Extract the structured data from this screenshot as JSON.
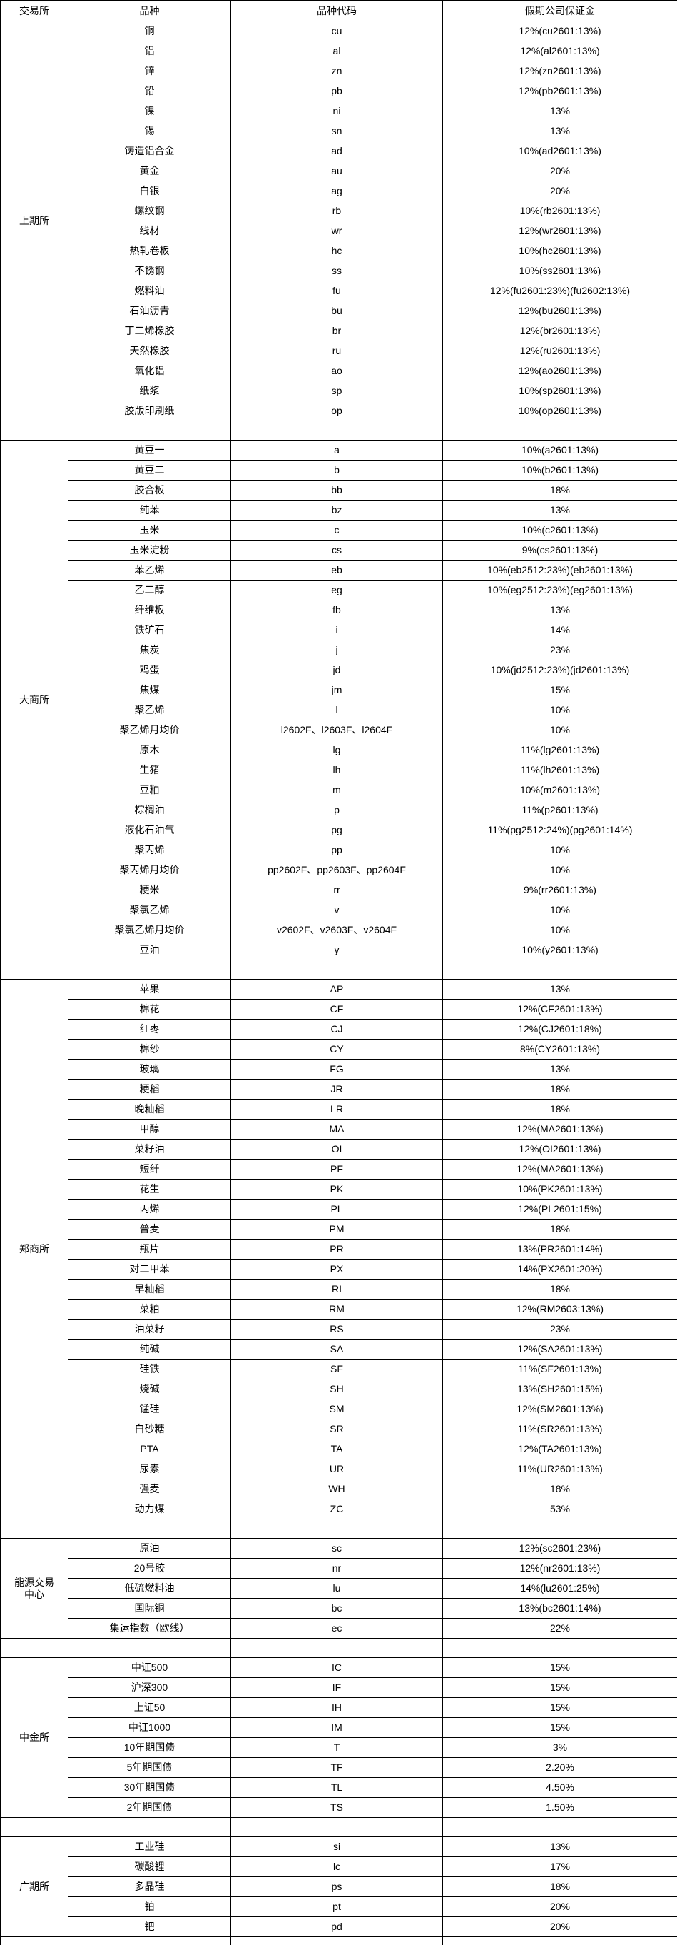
{
  "table": {
    "headers": [
      "交易所",
      "品种",
      "品种代码",
      "假期公司保证金"
    ],
    "sections": [
      {
        "exchange": "上期所",
        "rows": [
          [
            "铜",
            "cu",
            "12%(cu2601:13%)"
          ],
          [
            "铝",
            "al",
            "12%(al2601:13%)"
          ],
          [
            "锌",
            "zn",
            "12%(zn2601:13%)"
          ],
          [
            "铅",
            "pb",
            "12%(pb2601:13%)"
          ],
          [
            "镍",
            "ni",
            "13%"
          ],
          [
            "锡",
            "sn",
            "13%"
          ],
          [
            "铸造铝合金",
            "ad",
            "10%(ad2601:13%)"
          ],
          [
            "黄金",
            "au",
            "20%"
          ],
          [
            "白银",
            "ag",
            "20%"
          ],
          [
            "螺纹钢",
            "rb",
            "10%(rb2601:13%)"
          ],
          [
            "线材",
            "wr",
            "12%(wr2601:13%)"
          ],
          [
            "热轧卷板",
            "hc",
            "10%(hc2601:13%)"
          ],
          [
            "不锈钢",
            "ss",
            "10%(ss2601:13%)"
          ],
          [
            "燃料油",
            "fu",
            "12%(fu2601:23%)(fu2602:13%)"
          ],
          [
            "石油沥青",
            "bu",
            "12%(bu2601:13%)"
          ],
          [
            "丁二烯橡胶",
            "br",
            "12%(br2601:13%)"
          ],
          [
            "天然橡胶",
            "ru",
            "12%(ru2601:13%)"
          ],
          [
            "氧化铝",
            "ao",
            "12%(ao2601:13%)"
          ],
          [
            "纸浆",
            "sp",
            "10%(sp2601:13%)"
          ],
          [
            "胶版印刷纸",
            "op",
            "10%(op2601:13%)"
          ]
        ]
      },
      {
        "exchange": "大商所",
        "rows": [
          [
            "黄豆一",
            "a",
            "10%(a2601:13%)"
          ],
          [
            "黄豆二",
            "b",
            "10%(b2601:13%)"
          ],
          [
            "胶合板",
            "bb",
            "18%"
          ],
          [
            "纯苯",
            "bz",
            "13%"
          ],
          [
            "玉米",
            "c",
            "10%(c2601:13%)"
          ],
          [
            "玉米淀粉",
            "cs",
            "9%(cs2601:13%)"
          ],
          [
            "苯乙烯",
            "eb",
            "10%(eb2512:23%)(eb2601:13%)"
          ],
          [
            "乙二醇",
            "eg",
            "10%(eg2512:23%)(eg2601:13%)"
          ],
          [
            "纤维板",
            "fb",
            "13%"
          ],
          [
            "铁矿石",
            "i",
            "14%"
          ],
          [
            "焦炭",
            "j",
            "23%"
          ],
          [
            "鸡蛋",
            "jd",
            "10%(jd2512:23%)(jd2601:13%)"
          ],
          [
            "焦煤",
            "jm",
            "15%"
          ],
          [
            "聚乙烯",
            "l",
            "10%"
          ],
          [
            "聚乙烯月均价",
            "l2602F、l2603F、l2604F",
            "10%"
          ],
          [
            "原木",
            "lg",
            "11%(lg2601:13%)"
          ],
          [
            "生猪",
            "lh",
            "11%(lh2601:13%)"
          ],
          [
            "豆粕",
            "m",
            "10%(m2601:13%)"
          ],
          [
            "棕榈油",
            "p",
            "11%(p2601:13%)"
          ],
          [
            "液化石油气",
            "pg",
            "11%(pg2512:24%)(pg2601:14%)"
          ],
          [
            "聚丙烯",
            "pp",
            "10%"
          ],
          [
            "聚丙烯月均价",
            "pp2602F、pp2603F、pp2604F",
            "10%"
          ],
          [
            "粳米",
            "rr",
            "9%(rr2601:13%)"
          ],
          [
            "聚氯乙烯",
            "v",
            "10%"
          ],
          [
            "聚氯乙烯月均价",
            "v2602F、v2603F、v2604F",
            "10%"
          ],
          [
            "豆油",
            "y",
            "10%(y2601:13%)"
          ]
        ]
      },
      {
        "exchange": "郑商所",
        "rows": [
          [
            "苹果",
            "AP",
            "13%"
          ],
          [
            "棉花",
            "CF",
            "12%(CF2601:13%)"
          ],
          [
            "红枣",
            "CJ",
            "12%(CJ2601:18%)"
          ],
          [
            "棉纱",
            "CY",
            "8%(CY2601:13%)"
          ],
          [
            "玻璃",
            "FG",
            "13%"
          ],
          [
            "粳稻",
            "JR",
            "18%"
          ],
          [
            "晚籼稻",
            "LR",
            "18%"
          ],
          [
            "甲醇",
            "MA",
            "12%(MA2601:13%)"
          ],
          [
            "菜籽油",
            "OI",
            "12%(OI2601:13%)"
          ],
          [
            "短纤",
            "PF",
            "12%(MA2601:13%)"
          ],
          [
            "花生",
            "PK",
            "10%(PK2601:13%)"
          ],
          [
            "丙烯",
            "PL",
            "12%(PL2601:15%)"
          ],
          [
            "普麦",
            "PM",
            "18%"
          ],
          [
            "瓶片",
            "PR",
            "13%(PR2601:14%)"
          ],
          [
            "对二甲苯",
            "PX",
            "14%(PX2601:20%)"
          ],
          [
            "早籼稻",
            "RI",
            "18%"
          ],
          [
            "菜粕",
            "RM",
            "12%(RM2603:13%)"
          ],
          [
            "油菜籽",
            "RS",
            "23%"
          ],
          [
            "纯碱",
            "SA",
            "12%(SA2601:13%)"
          ],
          [
            "硅铁",
            "SF",
            "11%(SF2601:13%)"
          ],
          [
            "烧碱",
            "SH",
            "13%(SH2601:15%)"
          ],
          [
            "锰硅",
            "SM",
            "12%(SM2601:13%)"
          ],
          [
            "白砂糖",
            "SR",
            "11%(SR2601:13%)"
          ],
          [
            "PTA",
            "TA",
            "12%(TA2601:13%)"
          ],
          [
            "尿素",
            "UR",
            "11%(UR2601:13%)"
          ],
          [
            "强麦",
            "WH",
            "18%"
          ],
          [
            "动力煤",
            "ZC",
            "53%"
          ]
        ]
      },
      {
        "exchange": "能源交易\n中心",
        "rows": [
          [
            "原油",
            "sc",
            "12%(sc2601:23%)"
          ],
          [
            "20号胶",
            "nr",
            "12%(nr2601:13%)"
          ],
          [
            "低硫燃料油",
            "lu",
            "14%(lu2601:25%)"
          ],
          [
            "国际铜",
            "bc",
            "13%(bc2601:14%)"
          ],
          [
            "集运指数（欧线）",
            "ec",
            "22%"
          ]
        ]
      },
      {
        "exchange": "中金所",
        "rows": [
          [
            "中证500",
            "IC",
            "15%"
          ],
          [
            "沪深300",
            "IF",
            "15%"
          ],
          [
            "上证50",
            "IH",
            "15%"
          ],
          [
            "中证1000",
            "IM",
            "15%"
          ],
          [
            "10年期国债",
            "T",
            "3%"
          ],
          [
            "5年期国债",
            "TF",
            "2.20%"
          ],
          [
            "30年期国债",
            "TL",
            "4.50%"
          ],
          [
            "2年期国债",
            "TS",
            "1.50%"
          ]
        ]
      },
      {
        "exchange": "广期所",
        "rows": [
          [
            "工业硅",
            "si",
            "13%"
          ],
          [
            "碳酸锂",
            "lc",
            "17%"
          ],
          [
            "多晶硅",
            "ps",
            "18%"
          ],
          [
            "铂",
            "pt",
            "20%"
          ],
          [
            "钯",
            "pd",
            "20%"
          ]
        ]
      }
    ]
  }
}
